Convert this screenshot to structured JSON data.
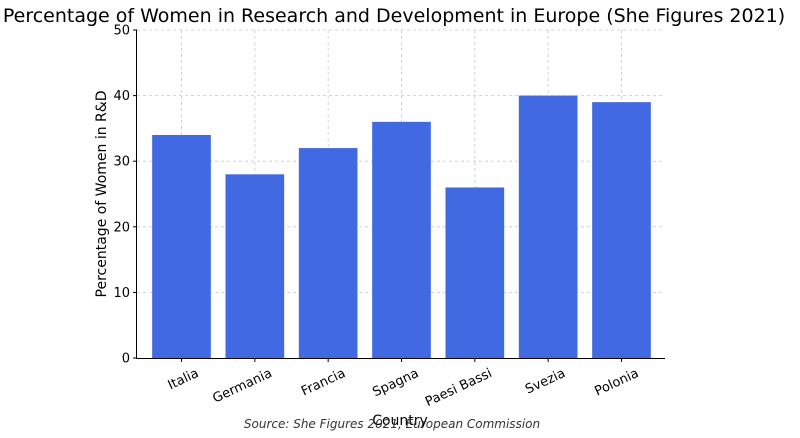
{
  "chart_data": {
    "type": "bar",
    "title": "Percentage of Women in Research and Development in Europe (She Figures 2021)",
    "xlabel": "Country",
    "ylabel": "Percentage of Women in R&D",
    "categories": [
      "Italia",
      "Germania",
      "Francia",
      "Spagna",
      "Paesi Bassi",
      "Svezia",
      "Polonia"
    ],
    "values": [
      34,
      28,
      32,
      36,
      26,
      40,
      39
    ],
    "ylim": [
      0,
      50
    ],
    "yticks": [
      0,
      10,
      20,
      30,
      40,
      50
    ],
    "grid": true,
    "bar_color": "#4169e1",
    "source": "Source: She Figures 2021, European Commission"
  }
}
